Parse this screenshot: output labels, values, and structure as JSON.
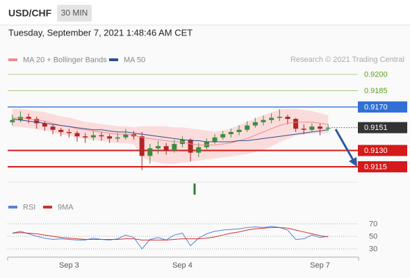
{
  "header": {
    "symbol": "USD/CHF",
    "interval": "30 MIN",
    "timestamp": "Tuesday, September 7, 2021 1:48:46 AM CET"
  },
  "chart_data": [
    {
      "type": "candlestick",
      "credit": "Research © 2021 Trading Central",
      "up_color": "#3d8b3d",
      "down_color": "#b32626",
      "open": [
        0.9156,
        0.9158,
        0.9161,
        0.9159,
        0.9155,
        0.9152,
        0.9149,
        0.9147,
        0.9146,
        0.9143,
        0.9142,
        0.9144,
        0.9143,
        0.9141,
        0.9142,
        0.9145,
        0.9143,
        0.9125,
        0.9132,
        0.9134,
        0.913,
        0.9136,
        0.914,
        0.9128,
        0.9133,
        0.9138,
        0.9142,
        0.9145,
        0.9147,
        0.9149,
        0.9153,
        0.9156,
        0.9158,
        0.916,
        0.9161,
        0.9159,
        0.915,
        0.9149,
        0.9152,
        0.915
      ],
      "high": [
        0.9163,
        0.9166,
        0.9164,
        0.9161,
        0.9157,
        0.9154,
        0.9151,
        0.915,
        0.9148,
        0.9146,
        0.9148,
        0.9147,
        0.9145,
        0.9146,
        0.915,
        0.9148,
        0.9147,
        0.9136,
        0.9139,
        0.9137,
        0.914,
        0.9143,
        0.9141,
        0.9137,
        0.9141,
        0.9145,
        0.9148,
        0.915,
        0.9153,
        0.9157,
        0.916,
        0.9162,
        0.9164,
        0.9168,
        0.9163,
        0.916,
        0.9154,
        0.9155,
        0.9155,
        0.9154
      ],
      "low": [
        0.9153,
        0.9156,
        0.9155,
        0.915,
        0.9148,
        0.9145,
        0.9143,
        0.9142,
        0.9138,
        0.9137,
        0.9139,
        0.9139,
        0.9137,
        0.9138,
        0.914,
        0.914,
        0.9112,
        0.9118,
        0.9127,
        0.9126,
        0.9128,
        0.9133,
        0.912,
        0.9124,
        0.9131,
        0.9136,
        0.914,
        0.9142,
        0.9144,
        0.9147,
        0.9151,
        0.9153,
        0.9155,
        0.9157,
        0.9154,
        0.9147,
        0.9145,
        0.9147,
        0.9144,
        0.9148
      ],
      "close": [
        0.9158,
        0.9161,
        0.9159,
        0.9155,
        0.9152,
        0.9149,
        0.9147,
        0.9146,
        0.9143,
        0.9142,
        0.9144,
        0.9143,
        0.9141,
        0.9142,
        0.9145,
        0.9143,
        0.9125,
        0.9132,
        0.9134,
        0.913,
        0.9136,
        0.914,
        0.9128,
        0.9133,
        0.9138,
        0.9142,
        0.9145,
        0.9147,
        0.9149,
        0.9153,
        0.9156,
        0.9158,
        0.916,
        0.9161,
        0.9159,
        0.915,
        0.9149,
        0.9152,
        0.915,
        0.9151
      ],
      "series": [
        {
          "name": "MA 20 + Bollinger Bands",
          "color": "#f08a8a",
          "band_color": "#fbdcdc",
          "values": [
            0.916,
            0.916,
            0.9159,
            0.9158,
            0.9157,
            0.9155,
            0.9153,
            0.9152,
            0.915,
            0.9149,
            0.9148,
            0.9147,
            0.9146,
            0.9145,
            0.9145,
            0.9144,
            0.9142,
            0.9141,
            0.914,
            0.9139,
            0.9138,
            0.9138,
            0.9136,
            0.9135,
            0.9135,
            0.9135,
            0.9136,
            0.9137,
            0.9139,
            0.9141,
            0.9144,
            0.9147,
            0.915,
            0.9153,
            0.9155,
            0.9156,
            0.9156,
            0.9156,
            0.9155,
            0.9154
          ],
          "upper": [
            0.9168,
            0.9168,
            0.9167,
            0.9166,
            0.9165,
            0.9163,
            0.9161,
            0.916,
            0.9158,
            0.9156,
            0.9155,
            0.9154,
            0.9153,
            0.9152,
            0.9152,
            0.9151,
            0.9152,
            0.9152,
            0.9152,
            0.9152,
            0.9151,
            0.9151,
            0.915,
            0.9149,
            0.9148,
            0.9147,
            0.9148,
            0.915,
            0.9153,
            0.9156,
            0.9159,
            0.9162,
            0.9165,
            0.9167,
            0.9168,
            0.9168,
            0.9167,
            0.9166,
            0.9164,
            0.9162
          ],
          "lower": [
            0.9152,
            0.9152,
            0.9151,
            0.915,
            0.9149,
            0.9147,
            0.9145,
            0.9144,
            0.9142,
            0.9141,
            0.914,
            0.9139,
            0.9138,
            0.9137,
            0.9137,
            0.9136,
            0.9124,
            0.9121,
            0.9119,
            0.9118,
            0.9118,
            0.9119,
            0.912,
            0.9121,
            0.9122,
            0.9123,
            0.9124,
            0.9125,
            0.9126,
            0.9127,
            0.9129,
            0.9131,
            0.9134,
            0.9138,
            0.9141,
            0.9144,
            0.9145,
            0.9146,
            0.9146,
            0.9146
          ]
        },
        {
          "name": "MA 50",
          "color": "#2c4f8c",
          "values": [
            0.9159,
            0.9158,
            0.9157,
            0.9156,
            0.9155,
            0.9154,
            0.9153,
            0.9152,
            0.9151,
            0.915,
            0.9149,
            0.9149,
            0.9148,
            0.9147,
            0.9147,
            0.9146,
            0.9145,
            0.9144,
            0.9143,
            0.9142,
            0.9141,
            0.914,
            0.9139,
            0.9139,
            0.9138,
            0.9138,
            0.9138,
            0.9138,
            0.9139,
            0.9139,
            0.914,
            0.9141,
            0.9142,
            0.9143,
            0.9144,
            0.9145,
            0.9146,
            0.9147,
            0.9148,
            0.9149
          ]
        }
      ],
      "ylim": [
        0.9095,
        0.9215
      ],
      "levels": [
        {
          "value": 0.92,
          "label": "0.9200",
          "color": "#5c9e1c",
          "label_box": false
        },
        {
          "value": 0.9185,
          "label": "0.9185",
          "color": "#5c9e1c",
          "label_box": false
        },
        {
          "value": 0.917,
          "label": "0.9170",
          "color": "#2f6fd6",
          "label_box": true
        },
        {
          "value": 0.913,
          "label": "0.9130",
          "color": "#d41a1a",
          "label_box": true
        },
        {
          "value": 0.9115,
          "label": "0.9115",
          "color": "#d41a1a",
          "label_box": true
        }
      ],
      "last_price": {
        "value": 0.9151,
        "label": "0.9151",
        "color": "#333333"
      }
    },
    {
      "type": "line",
      "categories": [
        null,
        null,
        null,
        null,
        null,
        null,
        null,
        "Sep 3",
        null,
        null,
        null,
        null,
        null,
        null,
        null,
        null,
        null,
        null,
        null,
        null,
        null,
        "Sep 4",
        null,
        null,
        null,
        null,
        null,
        null,
        null,
        null,
        null,
        null,
        null,
        null,
        null,
        null,
        null,
        null,
        "Sep 7",
        null
      ],
      "series": [
        {
          "name": "RSI",
          "color": "#5a7fd6",
          "values": [
            55,
            58,
            54,
            50,
            47,
            45,
            46,
            45,
            44,
            44,
            47,
            45,
            44,
            46,
            52,
            48,
            30,
            45,
            48,
            44,
            52,
            55,
            35,
            47,
            54,
            58,
            60,
            61,
            62,
            64,
            65,
            64,
            66,
            64,
            60,
            45,
            46,
            52,
            48,
            50
          ]
        },
        {
          "name": "9MA",
          "color": "#d32f2f",
          "values": [
            55,
            56,
            55,
            54,
            52,
            50,
            48,
            47,
            46,
            45,
            45,
            45,
            45,
            45,
            46,
            46,
            44,
            44,
            44,
            44,
            45,
            46,
            46,
            46,
            47,
            49,
            52,
            55,
            57,
            60,
            62,
            63,
            64,
            64,
            63,
            60,
            57,
            54,
            51,
            49
          ]
        }
      ],
      "ylim": [
        20,
        80
      ],
      "yticks": [
        70,
        50,
        30
      ],
      "grid": true
    }
  ]
}
